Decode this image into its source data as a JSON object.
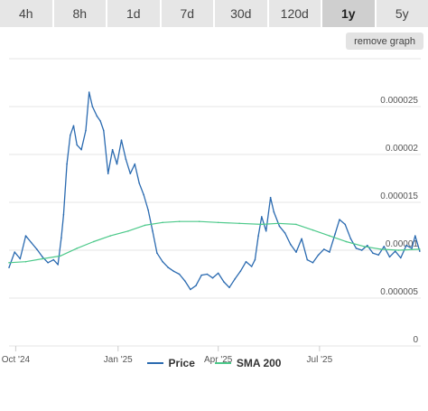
{
  "tabs": [
    {
      "label": "4h",
      "active": false
    },
    {
      "label": "8h",
      "active": false
    },
    {
      "label": "1d",
      "active": false
    },
    {
      "label": "7d",
      "active": false
    },
    {
      "label": "30d",
      "active": false
    },
    {
      "label": "120d",
      "active": false
    },
    {
      "label": "1y",
      "active": true
    },
    {
      "label": "5y",
      "active": false
    }
  ],
  "remove_graph_label": "remove graph",
  "colors": {
    "price": "#2a6ab0",
    "sma": "#4cc98a",
    "grid": "#e6e6e6",
    "axis_text": "#555555"
  },
  "chart_data": {
    "type": "line",
    "title": "",
    "xlabel": "",
    "ylabel": "",
    "x_tick_labels": [
      "Oct '24",
      "Jan '25",
      "Apr '25",
      "Jul '25"
    ],
    "x_tick_dates": [
      "2024-10-01",
      "2025-01-01",
      "2025-04-01",
      "2025-07-01"
    ],
    "xlim": [
      "2024-09-25",
      "2025-09-30"
    ],
    "ylim": [
      0,
      3e-05
    ],
    "y_ticks": [
      0,
      5e-06,
      1e-05,
      1.5e-05,
      2e-05,
      2.5e-05
    ],
    "y_tick_labels": [
      "0",
      "0.000005",
      "0.00001",
      "0.000015",
      "0.00002",
      "0.000025"
    ],
    "grid": true,
    "legend_position": "bottom-center",
    "series": [
      {
        "name": "Price",
        "x": [
          "2024-09-25",
          "2024-09-30",
          "2024-10-05",
          "2024-10-10",
          "2024-10-15",
          "2024-10-20",
          "2024-10-25",
          "2024-10-30",
          "2024-11-04",
          "2024-11-08",
          "2024-11-11",
          "2024-11-13",
          "2024-11-16",
          "2024-11-19",
          "2024-11-22",
          "2024-11-25",
          "2024-11-29",
          "2024-12-03",
          "2024-12-06",
          "2024-12-09",
          "2024-12-13",
          "2024-12-16",
          "2024-12-19",
          "2024-12-23",
          "2024-12-27",
          "2024-12-31",
          "2025-01-04",
          "2025-01-08",
          "2025-01-12",
          "2025-01-16",
          "2025-01-20",
          "2025-01-24",
          "2025-01-28",
          "2025-02-01",
          "2025-02-05",
          "2025-02-10",
          "2025-02-15",
          "2025-02-20",
          "2025-02-25",
          "2025-03-02",
          "2025-03-07",
          "2025-03-12",
          "2025-03-17",
          "2025-03-22",
          "2025-03-27",
          "2025-04-01",
          "2025-04-06",
          "2025-04-11",
          "2025-04-16",
          "2025-04-21",
          "2025-04-26",
          "2025-05-01",
          "2025-05-04",
          "2025-05-07",
          "2025-05-10",
          "2025-05-14",
          "2025-05-18",
          "2025-05-21",
          "2025-05-26",
          "2025-05-31",
          "2025-06-05",
          "2025-06-10",
          "2025-06-15",
          "2025-06-20",
          "2025-06-25",
          "2025-06-30",
          "2025-07-05",
          "2025-07-10",
          "2025-07-15",
          "2025-07-19",
          "2025-07-24",
          "2025-07-29",
          "2025-08-03",
          "2025-08-08",
          "2025-08-13",
          "2025-08-18",
          "2025-08-23",
          "2025-08-28",
          "2025-09-02",
          "2025-09-07",
          "2025-09-12",
          "2025-09-17",
          "2025-09-22",
          "2025-09-25",
          "2025-09-29"
        ],
        "y": [
          8.2e-06,
          9.8e-06,
          9.1e-06,
          1.15e-05,
          1.08e-05,
          1.01e-05,
          9.3e-06,
          8.7e-06,
          9e-06,
          8.5e-06,
          1.13e-05,
          1.37e-05,
          1.9e-05,
          2.2e-05,
          2.3e-05,
          2.1e-05,
          2.05e-05,
          2.25e-05,
          2.65e-05,
          2.5e-05,
          2.4e-05,
          2.35e-05,
          2.25e-05,
          1.8e-05,
          2.05e-05,
          1.9e-05,
          2.15e-05,
          1.95e-05,
          1.8e-05,
          1.9e-05,
          1.7e-05,
          1.58e-05,
          1.42e-05,
          1.2e-05,
          9.7e-06,
          8.8e-06,
          8.2e-06,
          7.8e-06,
          7.5e-06,
          6.8e-06,
          5.9e-06,
          6.3e-06,
          7.4e-06,
          7.5e-06,
          7.1e-06,
          7.6e-06,
          6.7e-06,
          6.1e-06,
          7e-06,
          7.8e-06,
          8.8e-06,
          8.3e-06,
          9e-06,
          1.15e-05,
          1.35e-05,
          1.2e-05,
          1.55e-05,
          1.4e-05,
          1.25e-05,
          1.18e-05,
          1.06e-05,
          9.8e-06,
          1.12e-05,
          9e-06,
          8.7e-06,
          9.5e-06,
          1.01e-05,
          9.8e-06,
          1.17e-05,
          1.32e-05,
          1.27e-05,
          1.12e-05,
          1.02e-05,
          1e-05,
          1.05e-05,
          9.7e-06,
          9.5e-06,
          1.04e-05,
          9.3e-06,
          9.9e-06,
          9.2e-06,
          1.05e-05,
          1.02e-05,
          1.15e-05,
          9.9e-06
        ]
      },
      {
        "name": "SMA 200",
        "x": [
          "2024-09-25",
          "2024-10-10",
          "2024-10-25",
          "2024-11-10",
          "2024-11-25",
          "2024-12-10",
          "2024-12-25",
          "2025-01-10",
          "2025-01-25",
          "2025-02-10",
          "2025-02-25",
          "2025-03-15",
          "2025-04-01",
          "2025-04-20",
          "2025-05-10",
          "2025-05-25",
          "2025-06-10",
          "2025-06-25",
          "2025-07-10",
          "2025-07-25",
          "2025-08-10",
          "2025-08-25",
          "2025-09-10",
          "2025-09-29"
        ],
        "y": [
          8.7e-06,
          8.8e-06,
          9.1e-06,
          9.4e-06,
          1.02e-05,
          1.09e-05,
          1.15e-05,
          1.2e-05,
          1.26e-05,
          1.29e-05,
          1.3e-05,
          1.3e-05,
          1.29e-05,
          1.28e-05,
          1.27e-05,
          1.28e-05,
          1.27e-05,
          1.21e-05,
          1.15e-05,
          1.09e-05,
          1.04e-05,
          1.01e-05,
          1e-05,
          1.01e-05
        ]
      }
    ]
  }
}
